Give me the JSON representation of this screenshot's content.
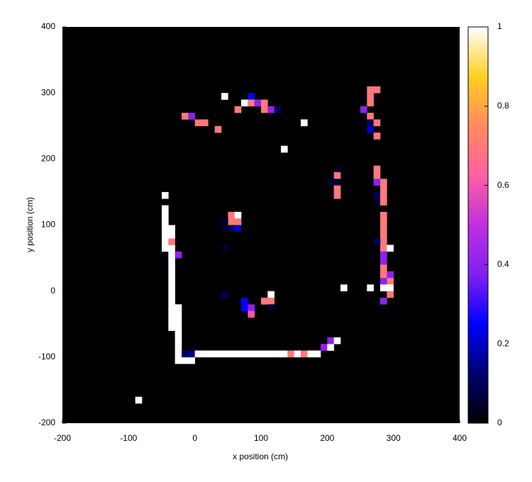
{
  "chart_data": {
    "type": "heatmap",
    "xlabel": "x position (cm)",
    "ylabel": "y position (cm)",
    "xlim": [
      -200,
      400
    ],
    "ylim": [
      -200,
      400
    ],
    "xticks": [
      -200,
      -100,
      0,
      100,
      200,
      300,
      400
    ],
    "yticks": [
      -200,
      -100,
      0,
      100,
      200,
      300,
      400
    ],
    "clim": [
      0,
      1
    ],
    "cticks": [
      0,
      0.2,
      0.4,
      0.6,
      0.8,
      1
    ],
    "cell_size": 10,
    "background": "#000000",
    "palette": [
      "#000000",
      "#000070",
      "#0000ff",
      "#8020f0",
      "#c030e0",
      "#ff60a0",
      "#ff8a60",
      "#ffd020",
      "#ffffff"
    ],
    "cells": [
      [
        -50,
        60,
        1
      ],
      [
        -50,
        70,
        1
      ],
      [
        -50,
        80,
        1
      ],
      [
        -50,
        90,
        1
      ],
      [
        -50,
        100,
        1
      ],
      [
        -50,
        110,
        1
      ],
      [
        -50,
        120,
        1
      ],
      [
        -50,
        140,
        1
      ],
      [
        -40,
        -60,
        1
      ],
      [
        -40,
        -50,
        1
      ],
      [
        -40,
        -40,
        1
      ],
      [
        -40,
        -30,
        1
      ],
      [
        -40,
        -20,
        1
      ],
      [
        -40,
        -10,
        1
      ],
      [
        -40,
        0,
        1
      ],
      [
        -40,
        10,
        1
      ],
      [
        -40,
        20,
        1
      ],
      [
        -40,
        30,
        1
      ],
      [
        -40,
        40,
        1
      ],
      [
        -40,
        50,
        1
      ],
      [
        -40,
        60,
        1
      ],
      [
        -40,
        70,
        0.7
      ],
      [
        -40,
        80,
        1
      ],
      [
        -40,
        90,
        1
      ],
      [
        -30,
        -110,
        1
      ],
      [
        -30,
        -100,
        1
      ],
      [
        -30,
        -90,
        1
      ],
      [
        -30,
        -80,
        1
      ],
      [
        -30,
        -70,
        1
      ],
      [
        -30,
        -60,
        1
      ],
      [
        -30,
        -50,
        1
      ],
      [
        -30,
        -40,
        1
      ],
      [
        -30,
        -30,
        1
      ],
      [
        -30,
        50,
        0.4
      ],
      [
        -20,
        -110,
        1
      ],
      [
        -10,
        -110,
        1
      ],
      [
        -20,
        -100,
        0.1
      ],
      [
        -10,
        -100,
        0.15
      ],
      [
        0,
        -100,
        1
      ],
      [
        10,
        -100,
        1
      ],
      [
        20,
        -100,
        1
      ],
      [
        30,
        -100,
        1
      ],
      [
        40,
        -100,
        1
      ],
      [
        50,
        -100,
        1
      ],
      [
        60,
        -100,
        1
      ],
      [
        70,
        -100,
        1
      ],
      [
        80,
        -100,
        1
      ],
      [
        90,
        -100,
        1
      ],
      [
        100,
        -100,
        1
      ],
      [
        110,
        -100,
        1
      ],
      [
        120,
        -100,
        1
      ],
      [
        130,
        -100,
        1
      ],
      [
        140,
        -100,
        0.7
      ],
      [
        150,
        -100,
        1
      ],
      [
        160,
        -100,
        0.7
      ],
      [
        170,
        -100,
        1
      ],
      [
        180,
        -100,
        1
      ],
      [
        190,
        -90,
        0.4
      ],
      [
        200,
        -90,
        1
      ],
      [
        200,
        -80,
        0.4
      ],
      [
        210,
        -80,
        1
      ],
      [
        -90,
        -170,
        1
      ],
      [
        40,
        290,
        1
      ],
      [
        80,
        290,
        0.25
      ],
      [
        70,
        280,
        1
      ],
      [
        80,
        280,
        0.7
      ],
      [
        90,
        280,
        0.4
      ],
      [
        100,
        280,
        0.7
      ],
      [
        60,
        270,
        0.7
      ],
      [
        100,
        270,
        0.7
      ],
      [
        110,
        270,
        0.4
      ],
      [
        120,
        270,
        0.1
      ],
      [
        -20,
        260,
        0.7
      ],
      [
        -10,
        260,
        0.4
      ],
      [
        0,
        250,
        0.7
      ],
      [
        10,
        250,
        0.7
      ],
      [
        30,
        240,
        0.7
      ],
      [
        160,
        250,
        1
      ],
      [
        130,
        210,
        1
      ],
      [
        260,
        300,
        0.7
      ],
      [
        270,
        300,
        0.7
      ],
      [
        260,
        290,
        0.7
      ],
      [
        260,
        280,
        0.7
      ],
      [
        250,
        270,
        0.4
      ],
      [
        260,
        260,
        0.7
      ],
      [
        260,
        250,
        0.1
      ],
      [
        270,
        250,
        0.7
      ],
      [
        260,
        240,
        0.2
      ],
      [
        270,
        230,
        0.7
      ],
      [
        270,
        180,
        0.7
      ],
      [
        270,
        170,
        0.7
      ],
      [
        270,
        160,
        0.4
      ],
      [
        270,
        140,
        0.1
      ],
      [
        270,
        130,
        0.05
      ],
      [
        280,
        130,
        0.7
      ],
      [
        280,
        140,
        0.7
      ],
      [
        280,
        150,
        0.7
      ],
      [
        280,
        160,
        0.7
      ],
      [
        280,
        60,
        0.7
      ],
      [
        280,
        70,
        0.7
      ],
      [
        280,
        80,
        0.7
      ],
      [
        280,
        90,
        0.7
      ],
      [
        280,
        100,
        0.7
      ],
      [
        280,
        110,
        0.7
      ],
      [
        270,
        70,
        0.1
      ],
      [
        290,
        60,
        1
      ],
      [
        280,
        40,
        0.4
      ],
      [
        280,
        50,
        0.4
      ],
      [
        280,
        20,
        0.7
      ],
      [
        280,
        30,
        0.7
      ],
      [
        290,
        20,
        0.4
      ],
      [
        290,
        10,
        0.7
      ],
      [
        280,
        10,
        0.4
      ],
      [
        280,
        0,
        1
      ],
      [
        290,
        0,
        1
      ],
      [
        290,
        -10,
        0.7
      ],
      [
        280,
        -20,
        0.4
      ],
      [
        220,
        0,
        1
      ],
      [
        260,
        0,
        1
      ],
      [
        210,
        180,
        0.05
      ],
      [
        210,
        170,
        0.7
      ],
      [
        200,
        160,
        0.05
      ],
      [
        210,
        160,
        0.05
      ],
      [
        210,
        150,
        0.7
      ],
      [
        210,
        140,
        0.7
      ],
      [
        50,
        110,
        0.7
      ],
      [
        60,
        110,
        1
      ],
      [
        50,
        100,
        0.7
      ],
      [
        60,
        100,
        0.7
      ],
      [
        40,
        90,
        0.05
      ],
      [
        50,
        90,
        0.1
      ],
      [
        60,
        90,
        0.2
      ],
      [
        40,
        100,
        0.05
      ],
      [
        40,
        60,
        0.05
      ],
      [
        40,
        -10,
        0.1
      ],
      [
        110,
        -10,
        1
      ],
      [
        100,
        -20,
        0.7
      ],
      [
        110,
        -20,
        0.7
      ],
      [
        70,
        -20,
        0.25
      ],
      [
        70,
        -30,
        0.25
      ],
      [
        80,
        -30,
        0.4
      ],
      [
        80,
        -40,
        0.6
      ],
      [
        110,
        -30,
        0.05
      ]
    ]
  }
}
